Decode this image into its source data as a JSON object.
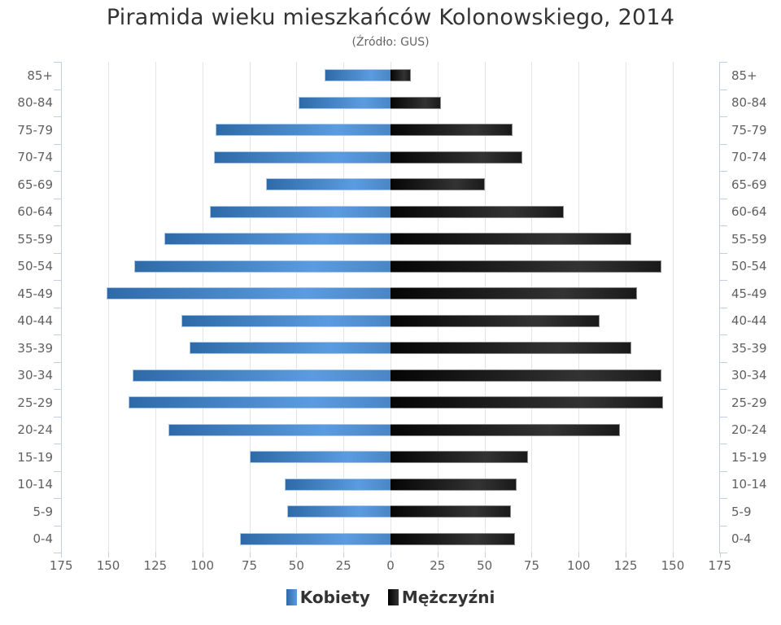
{
  "chart_data": {
    "type": "bar",
    "orientation": "horizontal-population-pyramid",
    "title": "Piramida wieku mieszkańców Kolonowskiego, 2014",
    "subtitle": "(Źródło: GUS)",
    "xlabel": "",
    "ylabel": "",
    "categories": [
      "85+",
      "80-84",
      "75-79",
      "70-74",
      "65-69",
      "60-64",
      "55-59",
      "50-54",
      "45-49",
      "40-44",
      "35-39",
      "30-34",
      "25-29",
      "20-24",
      "15-19",
      "10-14",
      "5-9",
      "0-4"
    ],
    "series": [
      {
        "name": "Kobiety",
        "color": "#4a86c5",
        "side": "left",
        "values": [
          35,
          49,
          93,
          94,
          66,
          96,
          120,
          136,
          151,
          111,
          107,
          137,
          139,
          118,
          75,
          56,
          55,
          80
        ]
      },
      {
        "name": "Mężczyźni",
        "color": "#1a1a1a",
        "side": "right",
        "values": [
          11,
          27,
          65,
          70,
          50,
          92,
          128,
          144,
          131,
          111,
          128,
          144,
          145,
          122,
          73,
          67,
          64,
          66
        ]
      }
    ],
    "x_ticks": [
      "175",
      "150",
      "125",
      "100",
      "75",
      "50",
      "25",
      "0",
      "25",
      "50",
      "75",
      "100",
      "125",
      "150",
      "175"
    ],
    "xlim": [
      -175,
      175
    ],
    "grid": true,
    "legend_position": "bottom-center"
  },
  "title": "Piramida wieku mieszkańców Kolonowskiego, 2014",
  "subtitle": "(Źródło: GUS)",
  "legend": {
    "female": "Kobiety",
    "male": "Mężczyźni"
  }
}
